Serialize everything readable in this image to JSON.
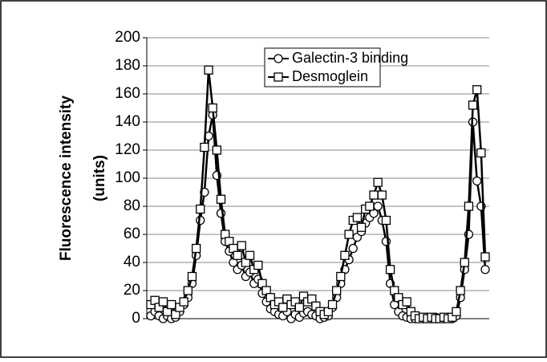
{
  "chart_data": {
    "type": "line",
    "ylabel": [
      "Fluorescence intensity",
      "(units)"
    ],
    "categories": [
      null,
      null,
      null,
      null,
      null,
      null,
      null,
      null,
      null,
      null,
      null,
      null,
      null,
      null,
      null,
      null,
      null,
      null,
      null,
      null,
      null,
      null,
      null,
      null,
      null,
      null,
      null,
      null,
      null,
      null,
      null,
      null,
      null,
      null,
      null,
      null,
      null,
      null,
      null,
      null,
      null,
      null,
      null,
      null,
      null,
      null,
      null,
      null,
      null,
      null,
      null,
      null,
      null,
      null,
      null,
      null,
      null,
      null,
      null,
      null,
      null,
      null,
      null,
      null,
      null,
      null,
      null,
      null,
      null,
      null,
      null,
      null,
      null,
      null,
      null,
      null,
      null,
      null,
      null,
      null,
      null,
      null
    ],
    "series": [
      {
        "name": "Galectin-3 binding",
        "color": "#000000",
        "marker": "circle",
        "values": [
          2,
          5,
          2,
          0,
          2,
          0,
          1,
          5,
          10,
          15,
          25,
          45,
          70,
          90,
          130,
          145,
          102,
          75,
          55,
          48,
          40,
          35,
          38,
          30,
          33,
          25,
          28,
          18,
          12,
          7,
          5,
          3,
          2,
          5,
          0,
          3,
          1,
          4,
          5,
          3,
          2,
          0,
          1,
          2,
          8,
          15,
          25,
          35,
          42,
          50,
          58,
          62,
          68,
          72,
          75,
          80,
          70,
          55,
          25,
          10,
          5,
          2,
          1,
          0,
          0,
          0,
          1,
          0,
          0,
          1,
          0,
          0,
          1,
          0,
          2,
          15,
          35,
          60,
          140,
          98,
          80,
          35
        ]
      },
      {
        "name": "Desmoglein",
        "color": "#000000",
        "marker": "square",
        "values": [
          10,
          13,
          8,
          12,
          5,
          10,
          3,
          8,
          12,
          20,
          30,
          50,
          78,
          122,
          177,
          150,
          120,
          85,
          60,
          55,
          50,
          45,
          52,
          40,
          45,
          35,
          38,
          25,
          20,
          15,
          10,
          12,
          8,
          14,
          10,
          12,
          8,
          16,
          12,
          14,
          9,
          5,
          3,
          5,
          10,
          20,
          30,
          45,
          60,
          70,
          72,
          65,
          78,
          80,
          88,
          97,
          88,
          70,
          35,
          20,
          15,
          10,
          12,
          5,
          2,
          0,
          1,
          0,
          1,
          0,
          0,
          1,
          0,
          1,
          5,
          20,
          40,
          80,
          152,
          163,
          118,
          44
        ]
      }
    ],
    "ylim": [
      0,
      200
    ],
    "yticks": [
      0,
      20,
      40,
      60,
      80,
      100,
      120,
      140,
      160,
      180,
      200
    ],
    "grid": true,
    "legend": "top-right"
  }
}
